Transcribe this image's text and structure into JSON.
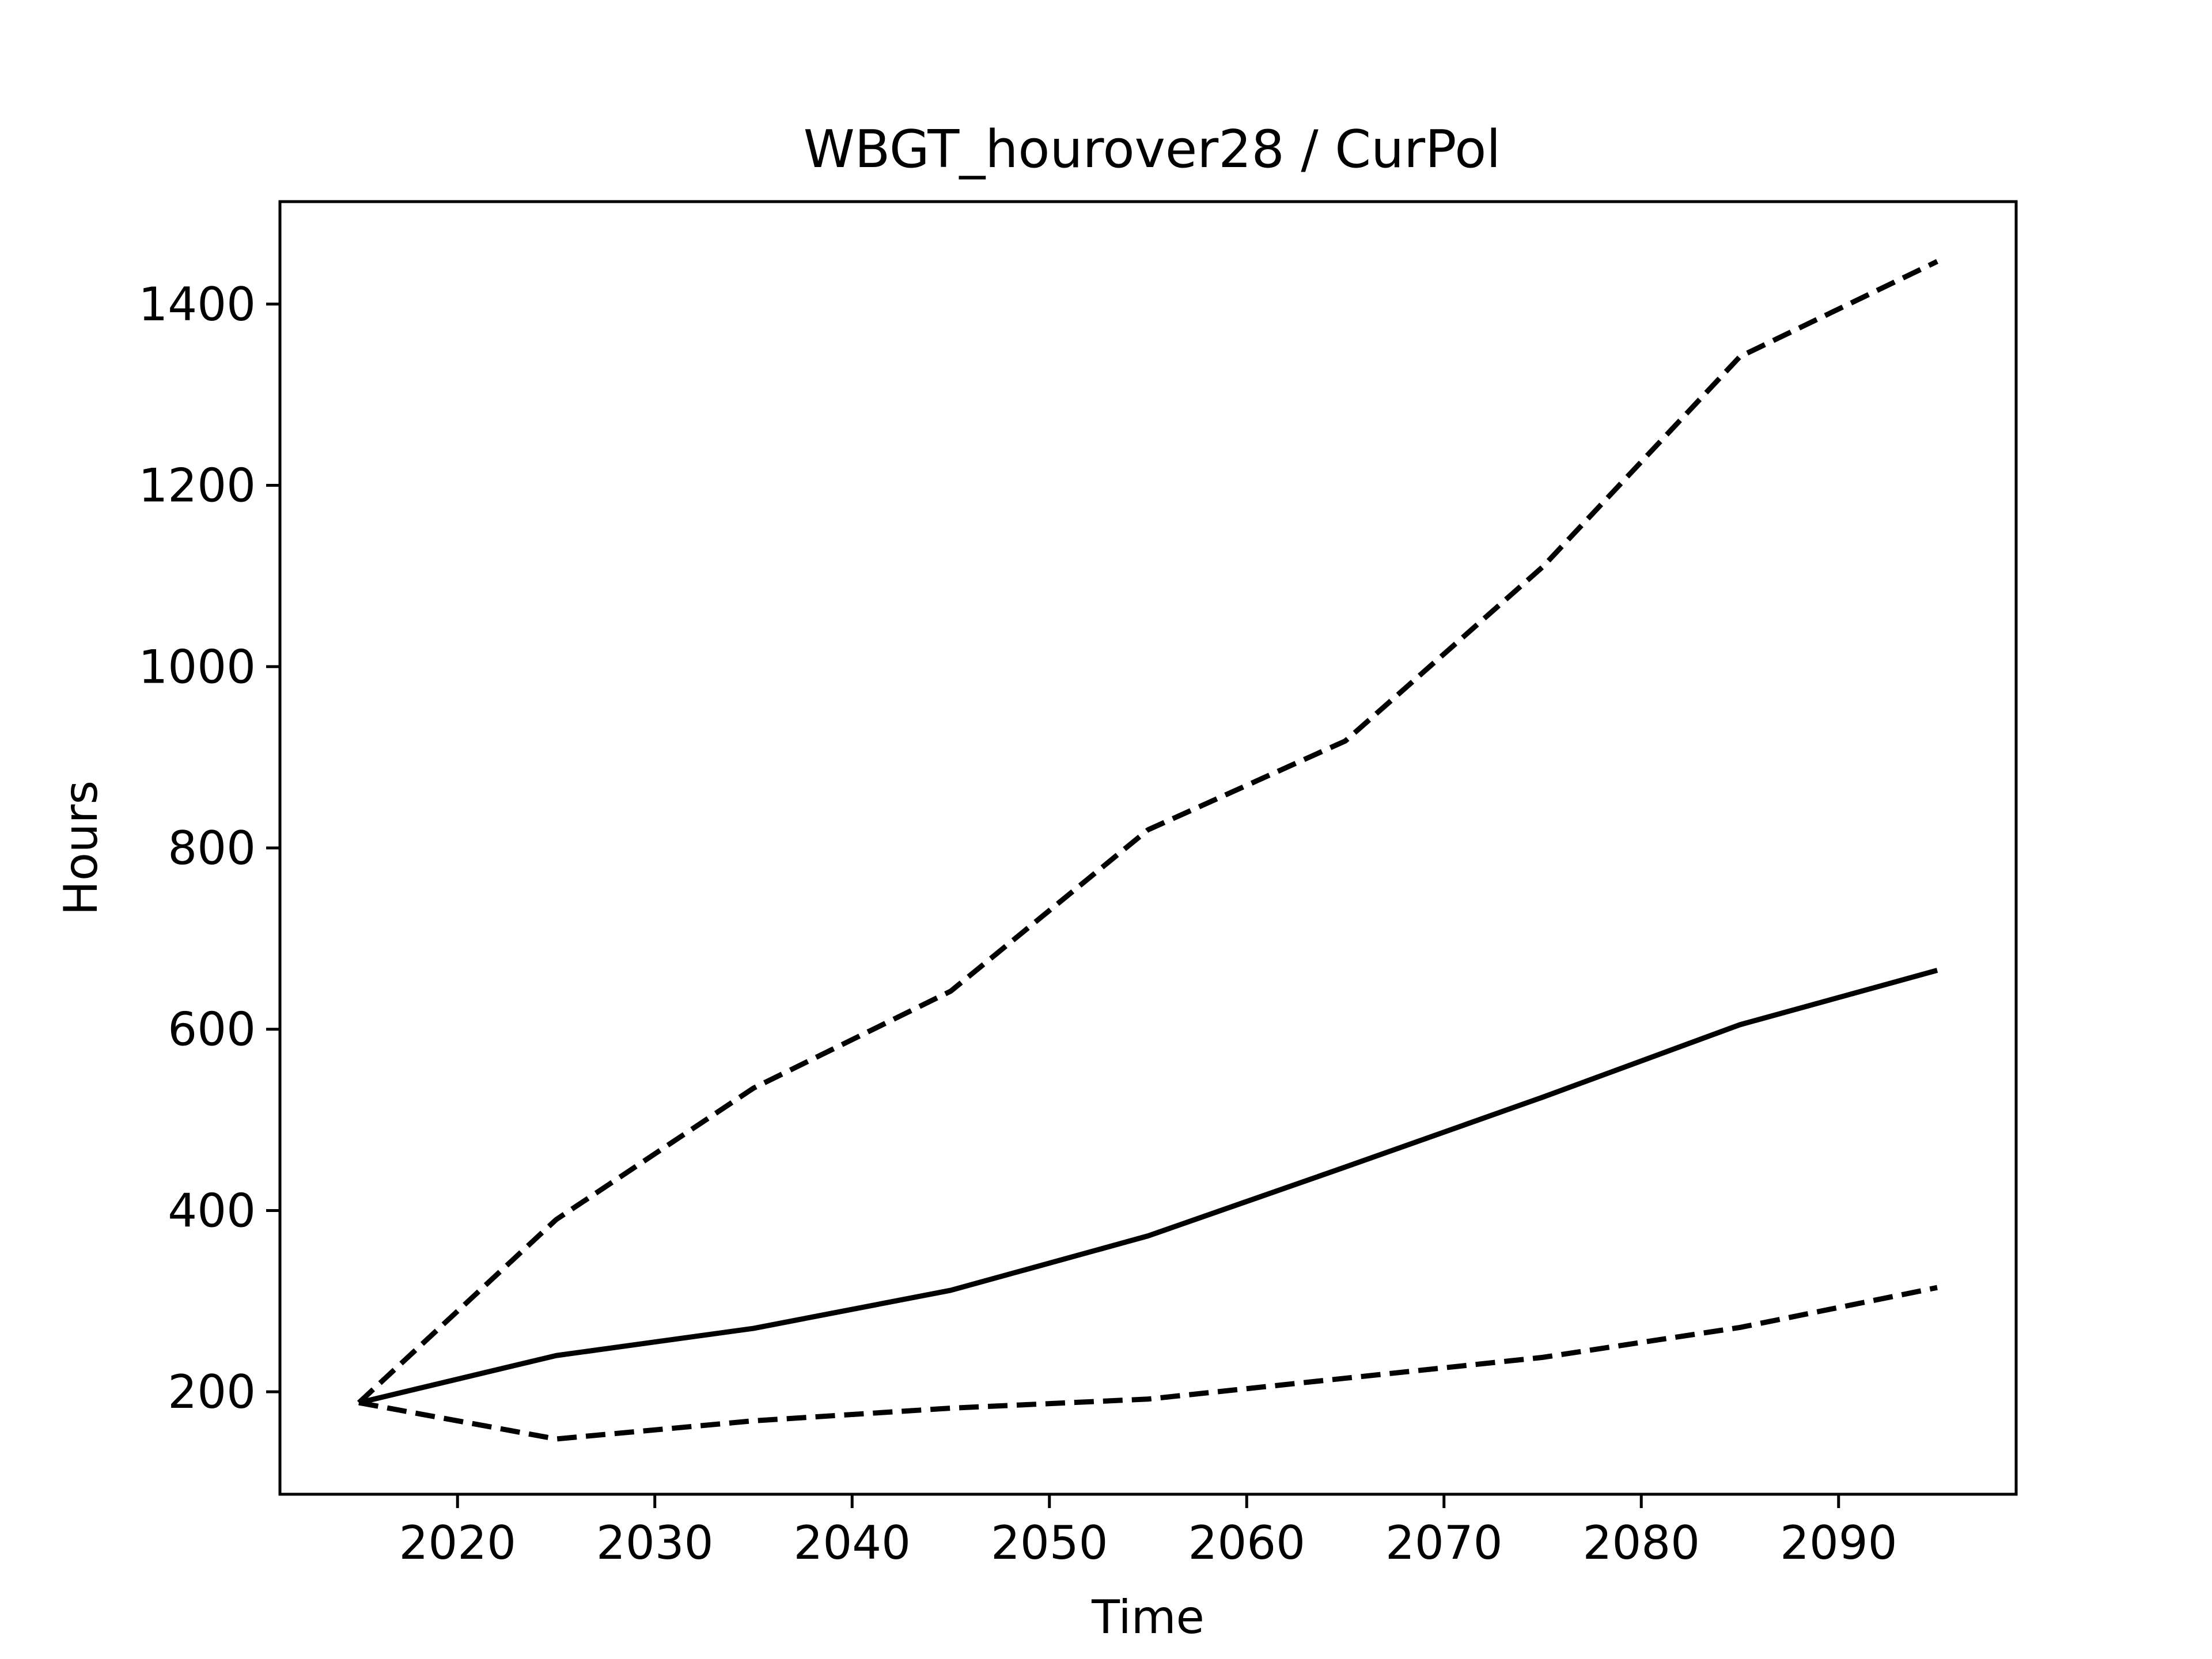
{
  "chart_data": {
    "type": "line",
    "title": "WBGT_hourover28 / CurPol",
    "xlabel": "Time",
    "ylabel": "Hours",
    "xlim": [
      2011,
      2099
    ],
    "ylim": [
      87,
      1513
    ],
    "xticks": [
      2020,
      2030,
      2040,
      2050,
      2060,
      2070,
      2080,
      2090
    ],
    "yticks": [
      200,
      400,
      600,
      800,
      1000,
      1200,
      1400
    ],
    "grid": false,
    "legend": "none",
    "x": [
      2015,
      2025,
      2035,
      2045,
      2055,
      2065,
      2075,
      2085,
      2095
    ],
    "series": [
      {
        "style": "dashed",
        "color": "#000000",
        "values": [
          188,
          390,
          535,
          642,
          820,
          918,
          1110,
          1342,
          1447
        ]
      },
      {
        "style": "solid",
        "color": "#000000",
        "values": [
          188,
          240,
          270,
          312,
          372,
          448,
          525,
          605,
          665
        ]
      },
      {
        "style": "dashed",
        "color": "#000000",
        "values": [
          188,
          148,
          168,
          182,
          192,
          215,
          238,
          271,
          315
        ]
      }
    ]
  }
}
